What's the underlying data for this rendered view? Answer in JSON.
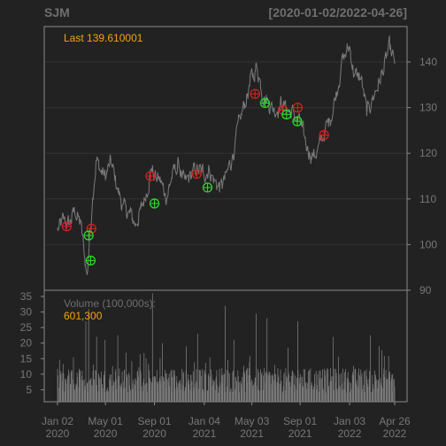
{
  "header": {
    "symbol": "SJM",
    "range": "[2020-01-02/2022-04-26]"
  },
  "price_panel": {
    "last_label": "Last 139.610001"
  },
  "volume_panel": {
    "label": "Volume (100,000s):",
    "value": "601,300"
  },
  "colors": {
    "background": "#222222",
    "frame": "#8a8a8a",
    "grid": "#333333",
    "price_line": "#7a7a7a",
    "volume_bars": "#7a7a7a",
    "annotation": "#f5a30a",
    "sell_marker": "#d42020",
    "buy_marker": "#2bd62b"
  },
  "chart_data": [
    {
      "type": "line",
      "title": "SJM",
      "x_start": "2020-01-02",
      "x_end": "2022-04-26",
      "ylim": [
        90,
        146
      ],
      "y_ticks": [
        90,
        100,
        110,
        120,
        130,
        140
      ],
      "x_tick_labels": [
        [
          "Jan 02",
          "2020"
        ],
        [
          "May 01",
          "2020"
        ],
        [
          "Sep 01",
          "2020"
        ],
        [
          "Jan 04",
          "2021"
        ],
        [
          "May 03",
          "2021"
        ],
        [
          "Sep 01",
          "2021"
        ],
        [
          "Jan 03",
          "2022"
        ],
        [
          "Apr 26",
          "2022"
        ]
      ],
      "x_tick_dates": [
        "2020-01-02",
        "2020-05-01",
        "2020-09-01",
        "2021-01-04",
        "2021-05-03",
        "2021-09-01",
        "2022-01-03",
        "2022-04-26"
      ],
      "series": [
        {
          "values": [
            [
              "2020-01-02",
              103.2
            ],
            [
              "2020-01-15",
              105.0
            ],
            [
              "2020-02-01",
              104.5
            ],
            [
              "2020-02-15",
              107.5
            ],
            [
              "2020-03-01",
              104.0
            ],
            [
              "2020-03-09",
              98.0
            ],
            [
              "2020-03-16",
              93.0
            ],
            [
              "2020-03-23",
              102.0
            ],
            [
              "2020-03-30",
              111.0
            ],
            [
              "2020-04-08",
              118.5
            ],
            [
              "2020-04-20",
              116.0
            ],
            [
              "2020-05-01",
              115.0
            ],
            [
              "2020-05-15",
              118.0
            ],
            [
              "2020-06-01",
              112.0
            ],
            [
              "2020-06-15",
              108.0
            ],
            [
              "2020-07-01",
              106.5
            ],
            [
              "2020-07-15",
              104.5
            ],
            [
              "2020-08-01",
              108.0
            ],
            [
              "2020-08-15",
              113.0
            ],
            [
              "2020-08-25",
              117.0
            ],
            [
              "2020-09-01",
              115.0
            ],
            [
              "2020-09-15",
              114.0
            ],
            [
              "2020-10-01",
              110.5
            ],
            [
              "2020-10-15",
              115.0
            ],
            [
              "2020-11-01",
              117.5
            ],
            [
              "2020-11-15",
              113.0
            ],
            [
              "2020-12-01",
              115.0
            ],
            [
              "2020-12-15",
              116.5
            ],
            [
              "2021-01-04",
              115.5
            ],
            [
              "2021-01-15",
              116.5
            ],
            [
              "2021-02-01",
              113.5
            ],
            [
              "2021-02-15",
              112.5
            ],
            [
              "2021-03-01",
              115.0
            ],
            [
              "2021-03-15",
              119.5
            ],
            [
              "2021-04-01",
              126.0
            ],
            [
              "2021-04-15",
              131.0
            ],
            [
              "2021-05-03",
              136.5
            ],
            [
              "2021-05-15",
              139.0
            ],
            [
              "2021-06-01",
              133.0
            ],
            [
              "2021-06-15",
              131.0
            ],
            [
              "2021-07-01",
              129.5
            ],
            [
              "2021-07-15",
              131.0
            ],
            [
              "2021-08-01",
              129.5
            ],
            [
              "2021-08-15",
              128.5
            ],
            [
              "2021-09-01",
              126.5
            ],
            [
              "2021-09-15",
              122.0
            ],
            [
              "2021-10-01",
              119.5
            ],
            [
              "2021-10-15",
              120.5
            ],
            [
              "2021-11-01",
              124.5
            ],
            [
              "2021-11-15",
              127.5
            ],
            [
              "2021-12-01",
              133.5
            ],
            [
              "2021-12-15",
              140.0
            ],
            [
              "2022-01-03",
              143.5
            ],
            [
              "2022-01-15",
              137.0
            ],
            [
              "2022-02-01",
              136.5
            ],
            [
              "2022-02-15",
              128.5
            ],
            [
              "2022-03-01",
              132.0
            ],
            [
              "2022-03-15",
              135.0
            ],
            [
              "2022-04-01",
              139.0
            ],
            [
              "2022-04-12",
              143.0
            ],
            [
              "2022-04-26",
              139.61
            ]
          ]
        }
      ],
      "markers": {
        "sell": [
          [
            "2020-01-25",
            104.0
          ],
          [
            "2020-03-27",
            103.5
          ],
          [
            "2020-08-22",
            115.0
          ],
          [
            "2020-12-16",
            115.5
          ],
          [
            "2021-05-11",
            133.0
          ],
          [
            "2021-07-20",
            129.5
          ],
          [
            "2021-08-26",
            130.0
          ],
          [
            "2021-10-31",
            124.0
          ]
        ],
        "buy": [
          [
            "2020-03-20",
            102.0
          ],
          [
            "2020-03-25",
            96.5
          ],
          [
            "2020-09-01",
            109.0
          ],
          [
            "2021-01-12",
            112.5
          ],
          [
            "2021-06-05",
            131.0
          ],
          [
            "2021-07-29",
            128.5
          ],
          [
            "2021-08-25",
            127.0
          ]
        ]
      }
    },
    {
      "type": "bar",
      "title": "Volume (100,000s):",
      "ylim": [
        0,
        36
      ],
      "y_ticks": [
        5,
        10,
        15,
        20,
        25,
        30,
        35
      ],
      "notes_for_rendering": "Daily volume bars in units of 100,000 shares; individual bar values approximated by a generated sequence anchored at known spikes.",
      "spikes": [
        [
          "2020-03-13",
          27.0
        ],
        [
          "2020-03-20",
          31.0
        ],
        [
          "2020-04-09",
          22.0
        ],
        [
          "2020-04-30",
          21.0
        ],
        [
          "2020-06-01",
          22.5
        ],
        [
          "2020-08-27",
          36.0
        ],
        [
          "2020-09-21",
          20.0
        ],
        [
          "2020-12-18",
          23.0
        ],
        [
          "2021-02-25",
          32.0
        ],
        [
          "2021-03-19",
          21.0
        ],
        [
          "2021-05-14",
          29.5
        ],
        [
          "2021-06-10",
          28.0
        ],
        [
          "2021-08-26",
          27.0
        ],
        [
          "2021-11-23",
          22.0
        ],
        [
          "2022-02-24",
          22.5
        ],
        [
          "2022-03-18",
          19.0
        ]
      ],
      "base_range": [
        4,
        12
      ],
      "last_value": 6.013
    }
  ]
}
